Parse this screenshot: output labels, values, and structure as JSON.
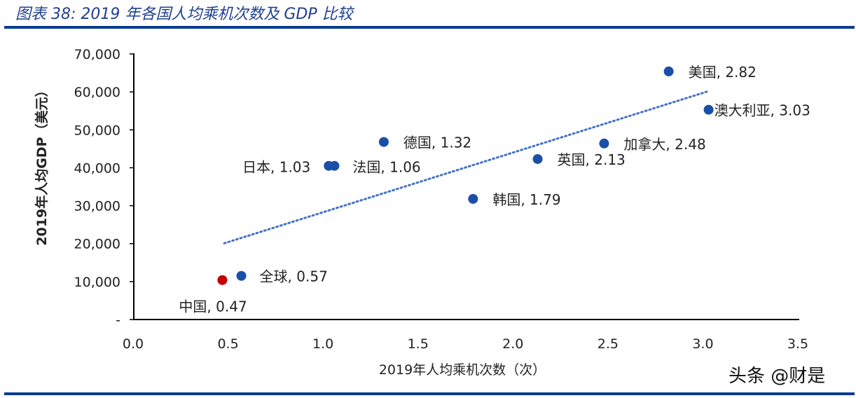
{
  "title": "图表 38: 2019 年各国人均乘机次数及 GDP 比较",
  "watermark": "头条 @财是",
  "colors": {
    "point": "#1a4fa8",
    "highlight": "#c00000",
    "trend": "#4472c4",
    "rule": "#0a3d91"
  },
  "chart_data": {
    "type": "scatter",
    "xlabel": "2019年人均乘机次数（次）",
    "ylabel": "2019年人均GDP（美元）",
    "xlim": [
      0,
      3.5
    ],
    "ylim": [
      0,
      70000
    ],
    "xticks": [
      "0.0",
      "0.5",
      "1.0",
      "1.5",
      "2.0",
      "2.5",
      "3.0",
      "3.5"
    ],
    "yticks": [
      "-",
      "10,000",
      "20,000",
      "30,000",
      "40,000",
      "50,000",
      "60,000",
      "70,000"
    ],
    "grid": false,
    "points": [
      {
        "label": "美国, 2.82",
        "x": 2.82,
        "y": 65400,
        "highlight": false
      },
      {
        "label": "澳大利亚, 3.03",
        "x": 3.03,
        "y": 55300,
        "highlight": false
      },
      {
        "label": "加拿大, 2.48",
        "x": 2.48,
        "y": 46400,
        "highlight": false
      },
      {
        "label": "英国, 2.13",
        "x": 2.13,
        "y": 42300,
        "highlight": false
      },
      {
        "label": "韩国, 1.79",
        "x": 1.79,
        "y": 31800,
        "highlight": false
      },
      {
        "label": "德国, 1.32",
        "x": 1.32,
        "y": 46800,
        "highlight": false
      },
      {
        "label": "日本, 1.03",
        "x": 1.03,
        "y": 40500,
        "highlight": false
      },
      {
        "label": "法国, 1.06",
        "x": 1.06,
        "y": 40500,
        "highlight": false
      },
      {
        "label": "全球, 0.57",
        "x": 0.57,
        "y": 11500,
        "highlight": false
      },
      {
        "label": "中国, 0.47",
        "x": 0.47,
        "y": 10400,
        "highlight": true
      }
    ],
    "trendline": {
      "type": "linear",
      "from": [
        0.48,
        20100
      ],
      "to": [
        3.03,
        60200
      ],
      "style": "dotted"
    }
  }
}
